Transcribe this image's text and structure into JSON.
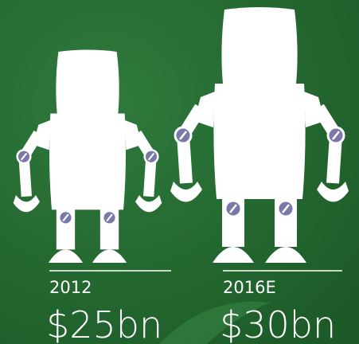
{
  "chart_data": {
    "type": "pictograph",
    "categories": [
      "2012",
      "2016E"
    ],
    "values": [
      25,
      30
    ],
    "value_labels": [
      "$25bn",
      "$30bn"
    ],
    "color": "#ffffff",
    "joint_color": "#7a78a8"
  }
}
